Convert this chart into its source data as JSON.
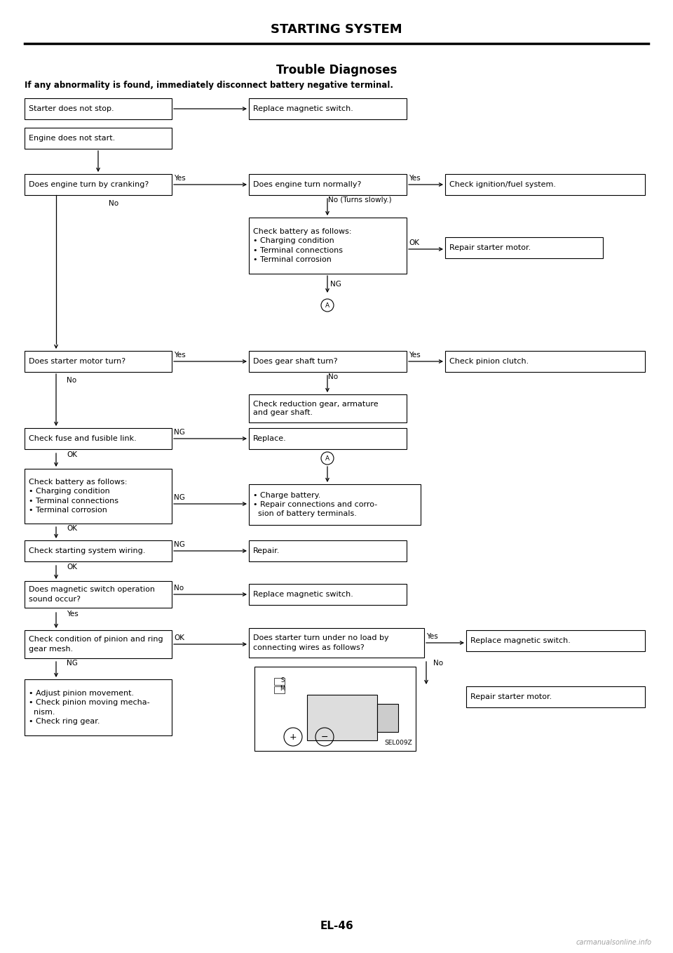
{
  "title": "STARTING SYSTEM",
  "subtitle": "Trouble Diagnoses",
  "warning": "If any abnormality is found, immediately disconnect battery negative terminal.",
  "footer": "EL-46",
  "watermark": "carmanualsonline.info",
  "bg_color": "#ffffff",
  "figw": 9.6,
  "figh": 13.58,
  "dpi": 100
}
